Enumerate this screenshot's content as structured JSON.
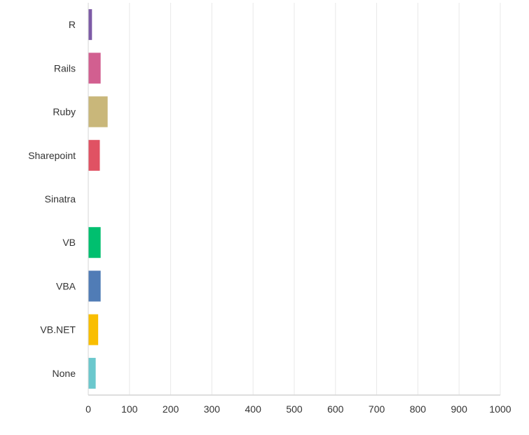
{
  "chart_data": {
    "type": "bar",
    "orientation": "horizontal",
    "categories": [
      "R",
      "Rails",
      "Ruby",
      "Sharepoint",
      "Sinatra",
      "VB",
      "VBA",
      "VB.NET",
      "None"
    ],
    "values": [
      9,
      30,
      47,
      28,
      0,
      30,
      30,
      24,
      18
    ],
    "colors": [
      "#7d5ba6",
      "#d25f90",
      "#c9b77a",
      "#e05263",
      "#2dc7d8",
      "#00bf6f",
      "#507cb6",
      "#f9be00",
      "#6bc8cd"
    ],
    "title": "",
    "xlabel": "",
    "ylabel": "",
    "xlim": [
      0,
      1000
    ],
    "ticks": [
      0,
      100,
      200,
      300,
      400,
      500,
      600,
      700,
      800,
      900,
      1000
    ],
    "tick_labels": [
      "0",
      "100",
      "200",
      "300",
      "400",
      "500",
      "600",
      "700",
      "800",
      "900",
      "1000"
    ],
    "grid": true,
    "legend": "none"
  }
}
